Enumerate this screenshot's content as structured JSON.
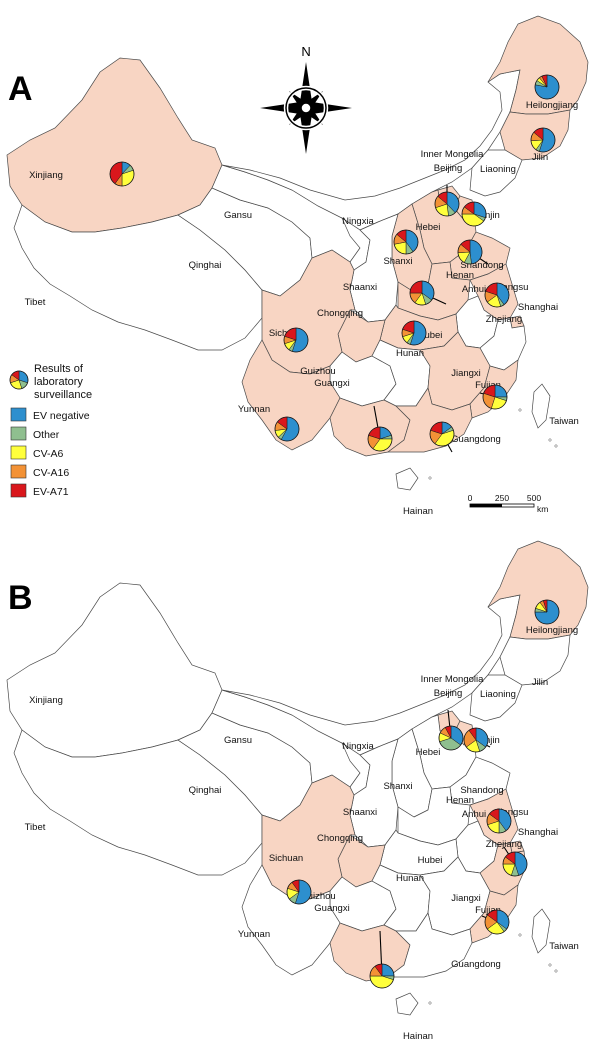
{
  "colors": {
    "ev_negative": "#2d8fce",
    "other": "#8fbf8f",
    "cv_a6": "#ffff3c",
    "cv_a16": "#f39236",
    "ev_a71": "#d9171c",
    "highlight": "#f8d5c3"
  },
  "compass": {
    "north_label": "N"
  },
  "legend": {
    "title_lines": [
      "Results of",
      "laboratory",
      "surveillance"
    ],
    "items": [
      {
        "key": "ev_negative",
        "label": "EV negative"
      },
      {
        "key": "other",
        "label": "Other"
      },
      {
        "key": "cv_a6",
        "label": "CV-A6"
      },
      {
        "key": "cv_a16",
        "label": "CV-A16"
      },
      {
        "key": "ev_a71",
        "label": "EV-A71"
      }
    ]
  },
  "scale_bar": {
    "ticks": [
      "0",
      "250",
      "500"
    ],
    "unit": "km"
  },
  "panels": [
    {
      "letter": "A",
      "highlighted": [
        "Heilongjiang",
        "Jilin",
        "Xinjiang",
        "Beijing",
        "Tianjin",
        "Hebei",
        "Shanxi",
        "Shandong",
        "Henan",
        "Jiangsu",
        "Shanghai",
        "Hubei",
        "Chongqing",
        "Sichuan",
        "Yunnan",
        "Guangxi",
        "Guangdong",
        "Fujian",
        "Jiangxi"
      ],
      "pies": [
        {
          "province": "Heilongjiang",
          "shares": [
            0.78,
            0.06,
            0.05,
            0.04,
            0.07
          ]
        },
        {
          "province": "Jilin",
          "shares": [
            0.55,
            0.05,
            0.14,
            0.12,
            0.14
          ]
        },
        {
          "province": "Xinjiang",
          "shares": [
            0.12,
            0.08,
            0.3,
            0.1,
            0.4
          ]
        },
        {
          "province": "Beijing",
          "shares": [
            0.38,
            0.1,
            0.22,
            0.16,
            0.14
          ]
        },
        {
          "province": "Tianjin",
          "shares": [
            0.3,
            0.05,
            0.4,
            0.1,
            0.15
          ]
        },
        {
          "province": "Shanxi",
          "shares": [
            0.4,
            0.1,
            0.22,
            0.14,
            0.14
          ]
        },
        {
          "province": "Shandong",
          "shares": [
            0.48,
            0.1,
            0.16,
            0.12,
            0.14
          ]
        },
        {
          "province": "Henan",
          "shares": [
            0.35,
            0.1,
            0.15,
            0.15,
            0.25
          ]
        },
        {
          "province": "Jiangsu",
          "shares": [
            0.4,
            0.05,
            0.2,
            0.15,
            0.2
          ]
        },
        {
          "province": "Hubei",
          "shares": [
            0.55,
            0.05,
            0.1,
            0.1,
            0.2
          ]
        },
        {
          "province": "Chongqing",
          "shares": [
            0.55,
            0.05,
            0.1,
            0.1,
            0.2
          ]
        },
        {
          "province": "Yunnan",
          "shares": [
            0.58,
            0.05,
            0.1,
            0.12,
            0.15
          ]
        },
        {
          "province": "Guangxi",
          "shares": [
            0.2,
            0.05,
            0.35,
            0.2,
            0.2
          ]
        },
        {
          "province": "Guangdong",
          "shares": [
            0.15,
            0.05,
            0.4,
            0.2,
            0.2
          ]
        },
        {
          "province": "Fujian",
          "shares": [
            0.25,
            0.05,
            0.25,
            0.25,
            0.2
          ]
        }
      ]
    },
    {
      "letter": "B",
      "highlighted": [
        "Heilongjiang",
        "Beijing",
        "Tianjin",
        "Jiangsu",
        "Shanghai",
        "Zhejiang",
        "Chongqing",
        "Sichuan",
        "Guangxi",
        "Fujian"
      ],
      "pies": [
        {
          "province": "Heilongjiang",
          "shares": [
            0.75,
            0.05,
            0.1,
            0.05,
            0.05
          ]
        },
        {
          "province": "Beijing",
          "shares": [
            0.35,
            0.35,
            0.12,
            0.1,
            0.08
          ]
        },
        {
          "province": "Tianjin",
          "shares": [
            0.35,
            0.1,
            0.2,
            0.25,
            0.1
          ]
        },
        {
          "province": "Jiangsu",
          "shares": [
            0.4,
            0.1,
            0.2,
            0.15,
            0.15
          ]
        },
        {
          "province": "Zhejiang",
          "shares": [
            0.45,
            0.1,
            0.2,
            0.1,
            0.15
          ]
        },
        {
          "province": "Chongqing",
          "shares": [
            0.55,
            0.1,
            0.15,
            0.1,
            0.1
          ]
        },
        {
          "province": "Guangxi",
          "shares": [
            0.25,
            0.05,
            0.45,
            0.15,
            0.1
          ]
        },
        {
          "province": "Fujian",
          "shares": [
            0.35,
            0.05,
            0.25,
            0.2,
            0.15
          ]
        }
      ]
    }
  ],
  "province_names": {
    "Xinjiang": "Xinjiang",
    "Tibet": "Tibet",
    "Qinghai": "Qinghai",
    "Gansu": "Gansu",
    "Inner Mongolia": "Inner Mongolia",
    "Heilongjiang": "Heilongjiang",
    "Jilin": "Jilin",
    "Liaoning": "Liaoning",
    "Beijing": "Beijing",
    "Tianjin": "Tianjin",
    "Hebei": "Hebei",
    "Ningxia": "Ningxia",
    "Shanxi": "Shanxi",
    "Shaanxi": "Shaanxi",
    "Shandong": "Shandong",
    "Henan": "Henan",
    "Jiangsu": "Jiangsu",
    "Shanghai": "Shanghai",
    "Anhui": "Anhui",
    "Hubei": "Hubei",
    "Zhejiang": "Zhejiang",
    "Chongqing": "Chongqing",
    "Sichuan": "Sichuan",
    "Guizhou": "Guizhou",
    "Hunan": "Hunan",
    "Jiangxi": "Jiangxi",
    "Fujian": "Fujian",
    "Taiwan": "Taiwan",
    "Yunnan": "Yunnan",
    "Guangxi": "Guangxi",
    "Guangdong": "Guangdong",
    "Hainan": "Hainan"
  }
}
